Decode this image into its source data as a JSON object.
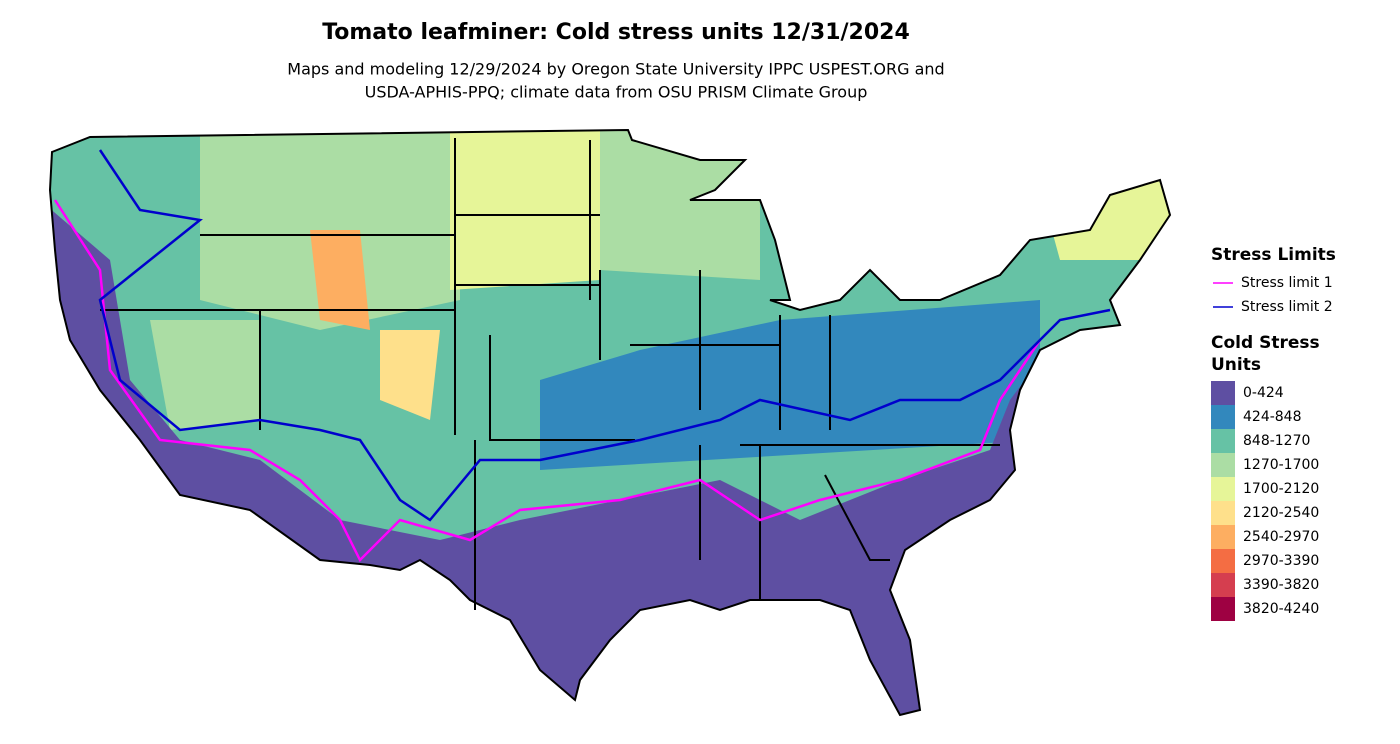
{
  "title": "Tomato leafminer: Cold stress units 12/31/2024",
  "subtitle_lines": [
    "Maps and modeling 12/29/2024 by Oregon State University IPPC USPEST.ORG and",
    "USDA-APHIS-PPQ; climate data from OSU PRISM Climate Group"
  ],
  "legend": {
    "stress_limits": {
      "title": "Stress Limits",
      "items": [
        {
          "label": "Stress limit 1",
          "color": "#ff00ff"
        },
        {
          "label": "Stress limit 2",
          "color": "#0000cd"
        }
      ]
    },
    "cold_stress_units": {
      "title_lines": [
        "Cold Stress",
        "Units"
      ],
      "items": [
        {
          "label": "0-424",
          "color": "#5e4fa2"
        },
        {
          "label": "424-848",
          "color": "#3288bd"
        },
        {
          "label": "848-1270",
          "color": "#66c2a5"
        },
        {
          "label": "1270-1700",
          "color": "#abdda4"
        },
        {
          "label": "1700-2120",
          "color": "#e6f598"
        },
        {
          "label": "2120-2540",
          "color": "#fee08b"
        },
        {
          "label": "2540-2970",
          "color": "#fdae61"
        },
        {
          "label": "2970-3390",
          "color": "#f46d43"
        },
        {
          "label": "3390-3820",
          "color": "#d53e4f"
        },
        {
          "label": "3820-4240",
          "color": "#9e0142"
        }
      ]
    }
  }
}
